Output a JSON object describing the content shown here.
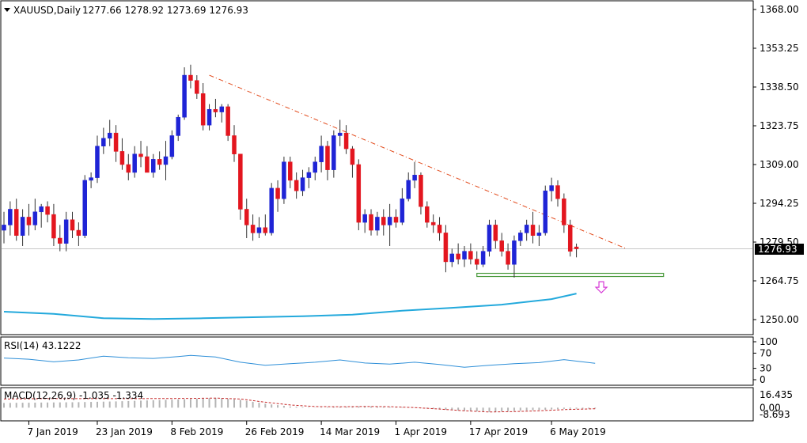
{
  "header": {
    "symbol": "XAUUSD,Daily",
    "ohlc": "1277.66 1278.92 1273.69 1276.93",
    "menu_icon": "triangle-down-icon"
  },
  "price_panel": {
    "last_price_label": "1276.93",
    "y_ticks": [
      "1368.00",
      "1353.25",
      "1338.50",
      "1323.75",
      "1309.00",
      "1294.25",
      "1279.50",
      "1264.75",
      "1250.00"
    ]
  },
  "rsi_panel": {
    "label": "RSI(14) 43.1222",
    "y_ticks": [
      "100",
      "70",
      "30",
      "0"
    ]
  },
  "macd_panel": {
    "label": "MACD(12,26,9) -1.035 -1.334",
    "y_ticks": [
      "16.435",
      "0.00",
      "-8.693"
    ]
  },
  "x_ticks": [
    "7 Jan 2019",
    "23 Jan 2019",
    "8 Feb 2019",
    "26 Feb 2019",
    "14 Mar 2019",
    "1 Apr 2019",
    "17 Apr 2019",
    "6 May 2019"
  ],
  "colors": {
    "bull": "#1f24d6",
    "bear": "#e3161f",
    "ma": "#23a9dc",
    "trendline": "#e24a1b",
    "support": "#4a9a3c",
    "arrow": "#d63ad6",
    "rsi": "#2e8fd8",
    "macd_hist": "#b4b4b4",
    "macd_signal": "#c62828"
  },
  "chart_data": {
    "type": "candlestick",
    "instrument": "XAUUSD",
    "timeframe": "Daily",
    "ylim": [
      1245,
      1373
    ],
    "first_bar": "2019-01-01",
    "ohlc": [
      [
        1284,
        1291,
        1279,
        1286
      ],
      [
        1286,
        1295,
        1282,
        1292
      ],
      [
        1292,
        1296,
        1280,
        1282
      ],
      [
        1282,
        1292,
        1278,
        1289
      ],
      [
        1289,
        1294,
        1282,
        1286
      ],
      [
        1286,
        1296,
        1284,
        1291
      ],
      [
        1291,
        1294,
        1285,
        1293
      ],
      [
        1293,
        1295,
        1287,
        1290
      ],
      [
        1290,
        1294,
        1278,
        1281
      ],
      [
        1281,
        1286,
        1276,
        1279
      ],
      [
        1279,
        1291,
        1276,
        1288
      ],
      [
        1288,
        1291,
        1281,
        1284
      ],
      [
        1284,
        1287,
        1278,
        1282
      ],
      [
        1282,
        1305,
        1281,
        1303
      ],
      [
        1303,
        1306,
        1300,
        1304
      ],
      [
        1304,
        1320,
        1302,
        1316
      ],
      [
        1316,
        1323,
        1313,
        1319
      ],
      [
        1319,
        1326,
        1316,
        1321
      ],
      [
        1321,
        1324,
        1310,
        1314
      ],
      [
        1314,
        1319,
        1307,
        1309
      ],
      [
        1309,
        1313,
        1303,
        1306
      ],
      [
        1306,
        1316,
        1304,
        1313
      ],
      [
        1313,
        1318,
        1308,
        1312
      ],
      [
        1312,
        1316,
        1306,
        1306
      ],
      [
        1306,
        1313,
        1304,
        1311
      ],
      [
        1311,
        1314,
        1307,
        1309
      ],
      [
        1309,
        1318,
        1303,
        1312
      ],
      [
        1312,
        1322,
        1311,
        1320
      ],
      [
        1320,
        1328,
        1318,
        1327
      ],
      [
        1327,
        1346,
        1326,
        1343
      ],
      [
        1343,
        1347,
        1338,
        1341
      ],
      [
        1341,
        1343,
        1334,
        1336
      ],
      [
        1336,
        1340,
        1322,
        1324
      ],
      [
        1324,
        1332,
        1322,
        1330
      ],
      [
        1330,
        1334,
        1327,
        1329
      ],
      [
        1329,
        1332,
        1325,
        1331
      ],
      [
        1331,
        1332,
        1318,
        1320
      ],
      [
        1320,
        1324,
        1310,
        1313
      ],
      [
        1313,
        1313,
        1288,
        1292
      ],
      [
        1292,
        1296,
        1281,
        1286
      ],
      [
        1286,
        1290,
        1280,
        1283
      ],
      [
        1283,
        1289,
        1281,
        1285
      ],
      [
        1285,
        1290,
        1282,
        1283
      ],
      [
        1283,
        1302,
        1282,
        1300
      ],
      [
        1300,
        1303,
        1291,
        1296
      ],
      [
        1296,
        1312,
        1294,
        1310
      ],
      [
        1310,
        1312,
        1300,
        1303
      ],
      [
        1303,
        1306,
        1296,
        1299
      ],
      [
        1299,
        1307,
        1297,
        1304
      ],
      [
        1304,
        1308,
        1300,
        1306
      ],
      [
        1306,
        1312,
        1303,
        1310
      ],
      [
        1310,
        1320,
        1306,
        1316
      ],
      [
        1316,
        1318,
        1303,
        1307
      ],
      [
        1307,
        1322,
        1304,
        1320
      ],
      [
        1320,
        1326,
        1316,
        1321
      ],
      [
        1321,
        1324,
        1313,
        1315
      ],
      [
        1315,
        1316,
        1304,
        1309
      ],
      [
        1309,
        1311,
        1284,
        1287
      ],
      [
        1287,
        1292,
        1283,
        1290
      ],
      [
        1290,
        1292,
        1282,
        1284
      ],
      [
        1284,
        1291,
        1282,
        1289
      ],
      [
        1289,
        1292,
        1282,
        1286
      ],
      [
        1286,
        1294,
        1278,
        1289
      ],
      [
        1289,
        1292,
        1285,
        1287
      ],
      [
        1287,
        1300,
        1286,
        1296
      ],
      [
        1296,
        1306,
        1295,
        1303
      ],
      [
        1303,
        1310,
        1300,
        1305
      ],
      [
        1305,
        1306,
        1290,
        1293
      ],
      [
        1293,
        1295,
        1285,
        1287
      ],
      [
        1287,
        1290,
        1283,
        1286
      ],
      [
        1286,
        1289,
        1280,
        1283
      ],
      [
        1283,
        1286,
        1268,
        1272
      ],
      [
        1272,
        1277,
        1270,
        1275
      ],
      [
        1275,
        1279,
        1271,
        1273
      ],
      [
        1273,
        1278,
        1270,
        1276
      ],
      [
        1276,
        1279,
        1271,
        1273
      ],
      [
        1273,
        1276,
        1269,
        1271
      ],
      [
        1271,
        1278,
        1270,
        1276
      ],
      [
        1276,
        1288,
        1274,
        1286
      ],
      [
        1286,
        1288,
        1277,
        1280
      ],
      [
        1280,
        1283,
        1274,
        1276
      ],
      [
        1276,
        1279,
        1269,
        1271
      ],
      [
        1271,
        1282,
        1266,
        1280
      ],
      [
        1280,
        1284,
        1278,
        1283
      ],
      [
        1283,
        1288,
        1280,
        1286
      ],
      [
        1286,
        1291,
        1279,
        1282
      ],
      [
        1282,
        1286,
        1278,
        1283
      ],
      [
        1283,
        1301,
        1282,
        1299
      ],
      [
        1299,
        1304,
        1295,
        1301
      ],
      [
        1301,
        1303,
        1293,
        1296
      ],
      [
        1296,
        1298,
        1283,
        1286
      ],
      [
        1286,
        1288,
        1274,
        1276
      ],
      [
        1277.66,
        1278.92,
        1273.69,
        1276.93
      ]
    ],
    "moving_average": [
      [
        0,
        1253.0
      ],
      [
        8,
        1252.2
      ],
      [
        16,
        1250.5
      ],
      [
        24,
        1250.2
      ],
      [
        32,
        1250.5
      ],
      [
        40,
        1250.9
      ],
      [
        48,
        1251.3
      ],
      [
        56,
        1251.9
      ],
      [
        64,
        1253.4
      ],
      [
        72,
        1254.5
      ],
      [
        80,
        1255.7
      ],
      [
        88,
        1257.8
      ],
      [
        92,
        1259.9
      ]
    ],
    "trendline": [
      [
        33,
        1343
      ],
      [
        100,
        1277
      ]
    ],
    "support_level": 1267,
    "support_range": [
      76,
      106
    ],
    "rsi": {
      "ylim": [
        0,
        100
      ],
      "levels": [
        70,
        30
      ],
      "values": [
        [
          0,
          57
        ],
        [
          4,
          54
        ],
        [
          8,
          47
        ],
        [
          12,
          52
        ],
        [
          16,
          62
        ],
        [
          20,
          58
        ],
        [
          24,
          56
        ],
        [
          28,
          61
        ],
        [
          30,
          64
        ],
        [
          34,
          60
        ],
        [
          38,
          46
        ],
        [
          42,
          38
        ],
        [
          46,
          42
        ],
        [
          50,
          46
        ],
        [
          54,
          52
        ],
        [
          58,
          44
        ],
        [
          62,
          41
        ],
        [
          66,
          46
        ],
        [
          70,
          40
        ],
        [
          74,
          33
        ],
        [
          78,
          38
        ],
        [
          82,
          42
        ],
        [
          86,
          45
        ],
        [
          90,
          53
        ],
        [
          92,
          49
        ],
        [
          95,
          43.1222
        ]
      ]
    },
    "macd": {
      "main_last": -1.035,
      "signal_last": -1.334,
      "ylim": [
        -8.693,
        16.435
      ],
      "histogram": [
        [
          0,
          6
        ],
        [
          6,
          6.5
        ],
        [
          12,
          7
        ],
        [
          18,
          8
        ],
        [
          24,
          9.5
        ],
        [
          30,
          11
        ],
        [
          34,
          12.5
        ],
        [
          38,
          10
        ],
        [
          42,
          5
        ],
        [
          46,
          1.5
        ],
        [
          50,
          0.2
        ],
        [
          54,
          1
        ],
        [
          58,
          1.8
        ],
        [
          62,
          1
        ],
        [
          66,
          0.2
        ],
        [
          70,
          -2
        ],
        [
          74,
          -4
        ],
        [
          78,
          -5.5
        ],
        [
          82,
          -4
        ],
        [
          86,
          -3
        ],
        [
          90,
          -1.5
        ],
        [
          95,
          -1.035
        ]
      ],
      "signal": [
        [
          0,
          11
        ],
        [
          6,
          11.5
        ],
        [
          12,
          11.5
        ],
        [
          18,
          11.5
        ],
        [
          24,
          11.6
        ],
        [
          30,
          11.8
        ],
        [
          34,
          12.2
        ],
        [
          38,
          11
        ],
        [
          42,
          7
        ],
        [
          46,
          3.5
        ],
        [
          50,
          1.5
        ],
        [
          54,
          1.2
        ],
        [
          58,
          1.6
        ],
        [
          62,
          1.3
        ],
        [
          66,
          0.2
        ],
        [
          70,
          -1.8
        ],
        [
          74,
          -4
        ],
        [
          78,
          -5.5
        ],
        [
          82,
          -5
        ],
        [
          86,
          -4
        ],
        [
          90,
          -2.5
        ],
        [
          95,
          -1.334
        ]
      ]
    },
    "x_tick_bars": [
      4,
      15,
      27,
      39,
      51,
      63,
      75,
      88
    ]
  }
}
